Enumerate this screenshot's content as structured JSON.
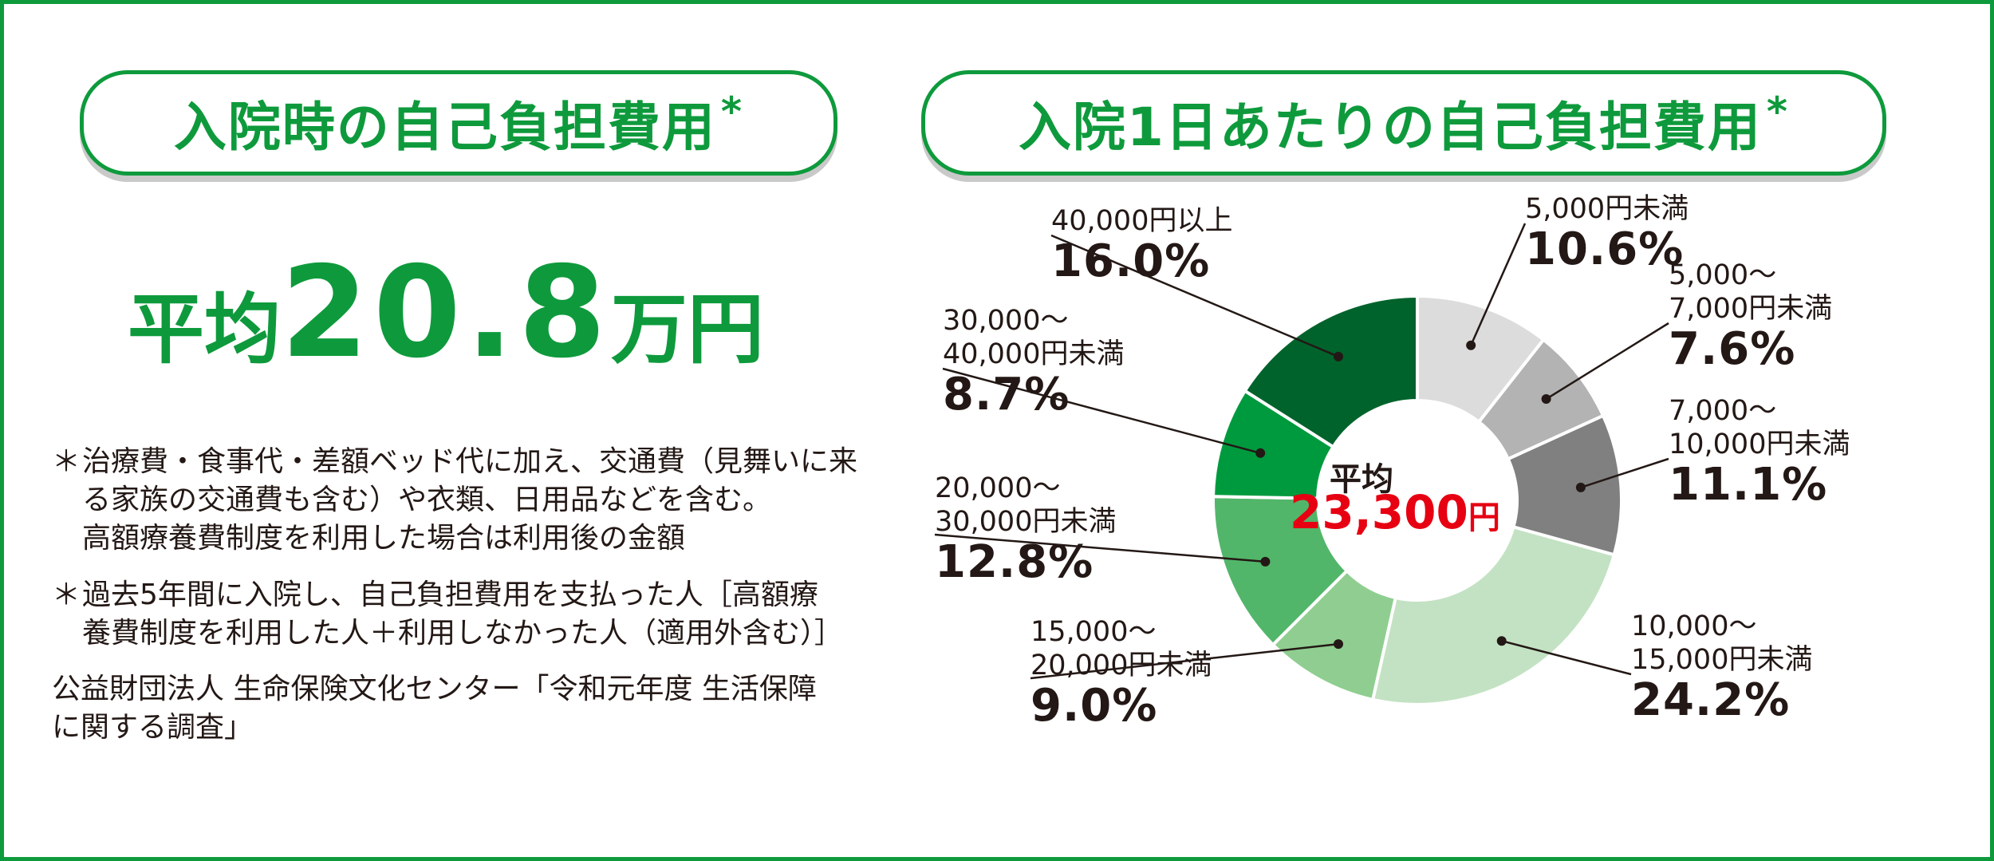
{
  "left": {
    "title": "入院時の自己負担費用",
    "title_mark": "*",
    "average_label": "平均",
    "average_value": "20.8",
    "average_unit": "万円",
    "notes": [
      {
        "star": "＊",
        "lines": [
          "治療費・食事代・差額ベッド代に加え、交通費（見舞いに来",
          "る家族の交通費も含む）や衣類、日用品などを含む。",
          "高額療養費制度を利用した場合は利用後の金額"
        ]
      },
      {
        "star": "＊",
        "lines": [
          "過去5年間に入院し、自己負担費用を支払った人［高額療",
          "養費制度を利用した人＋利用しなかった人（適用外含む）］"
        ]
      }
    ],
    "source_lines": [
      "公益財団法人 生命保険文化センター「令和元年度 生活保障",
      "に関する調査」"
    ]
  },
  "right": {
    "title": "入院1日あたりの自己負担費用",
    "title_mark": "*",
    "center_label": "平均",
    "center_value": "23,300",
    "center_unit": "円"
  },
  "colors": {
    "brand_green": "#0e9a3c",
    "average_red": "#e60012"
  },
  "chart_data": {
    "type": "pie",
    "donut": true,
    "slices": [
      {
        "label": [
          "5,000円未満"
        ],
        "value": 10.6,
        "display": "10.6%",
        "color": "#dcdcdc"
      },
      {
        "label": [
          "5,000～",
          "7,000円未満"
        ],
        "value": 7.6,
        "display": "7.6%",
        "color": "#b3b3b3"
      },
      {
        "label": [
          "7,000～",
          "10,000円未満"
        ],
        "value": 11.1,
        "display": "11.1%",
        "color": "#808080"
      },
      {
        "label": [
          "10,000～",
          "15,000円未満"
        ],
        "value": 24.2,
        "display": "24.2%",
        "color": "#c3e2c3"
      },
      {
        "label": [
          "15,000～",
          "20,000円未満"
        ],
        "value": 9.0,
        "display": "9.0%",
        "color": "#8fce90"
      },
      {
        "label": [
          "20,000～",
          "30,000円未満"
        ],
        "value": 12.8,
        "display": "12.8%",
        "color": "#52b66a"
      },
      {
        "label": [
          "30,000～",
          "40,000円未満"
        ],
        "value": 8.7,
        "display": "8.7%",
        "color": "#009a3e"
      },
      {
        "label": [
          "40,000円以上"
        ],
        "value": 16.0,
        "display": "16.0%",
        "color": "#00632b"
      }
    ]
  }
}
